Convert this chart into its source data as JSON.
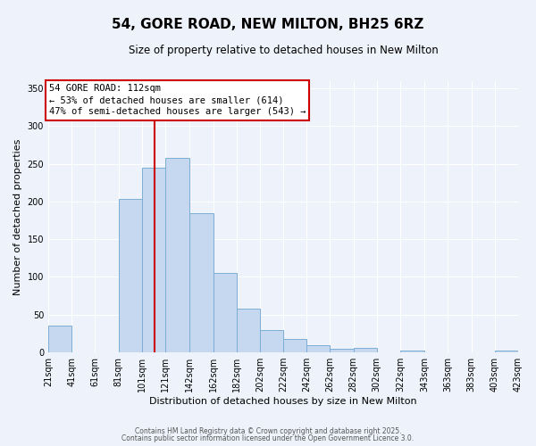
{
  "title": "54, GORE ROAD, NEW MILTON, BH25 6RZ",
  "subtitle": "Size of property relative to detached houses in New Milton",
  "xlabel": "Distribution of detached houses by size in New Milton",
  "ylabel": "Number of detached properties",
  "bar_color": "#c5d8f0",
  "bar_edge_color": "#7bafd4",
  "background_color": "#eef2fa",
  "grid_color": "#ffffff",
  "annotation_box_color": "#ffffff",
  "annotation_box_edge": "#cc0000",
  "red_line_x": 112,
  "annotation_title": "54 GORE ROAD: 112sqm",
  "annotation_line1": "← 53% of detached houses are smaller (614)",
  "annotation_line2": "47% of semi-detached houses are larger (543) →",
  "ylim": [
    0,
    360
  ],
  "bin_edges": [
    21,
    41,
    61,
    81,
    101,
    121,
    142,
    162,
    182,
    202,
    222,
    242,
    262,
    282,
    302,
    322,
    343,
    363,
    383,
    403,
    423
  ],
  "bar_heights": [
    35,
    0,
    0,
    203,
    245,
    258,
    185,
    105,
    58,
    30,
    18,
    10,
    5,
    6,
    0,
    3,
    0,
    0,
    0,
    3
  ],
  "yticks": [
    0,
    50,
    100,
    150,
    200,
    250,
    300,
    350
  ],
  "footer1": "Contains HM Land Registry data © Crown copyright and database right 2025.",
  "footer2": "Contains public sector information licensed under the Open Government Licence 3.0."
}
